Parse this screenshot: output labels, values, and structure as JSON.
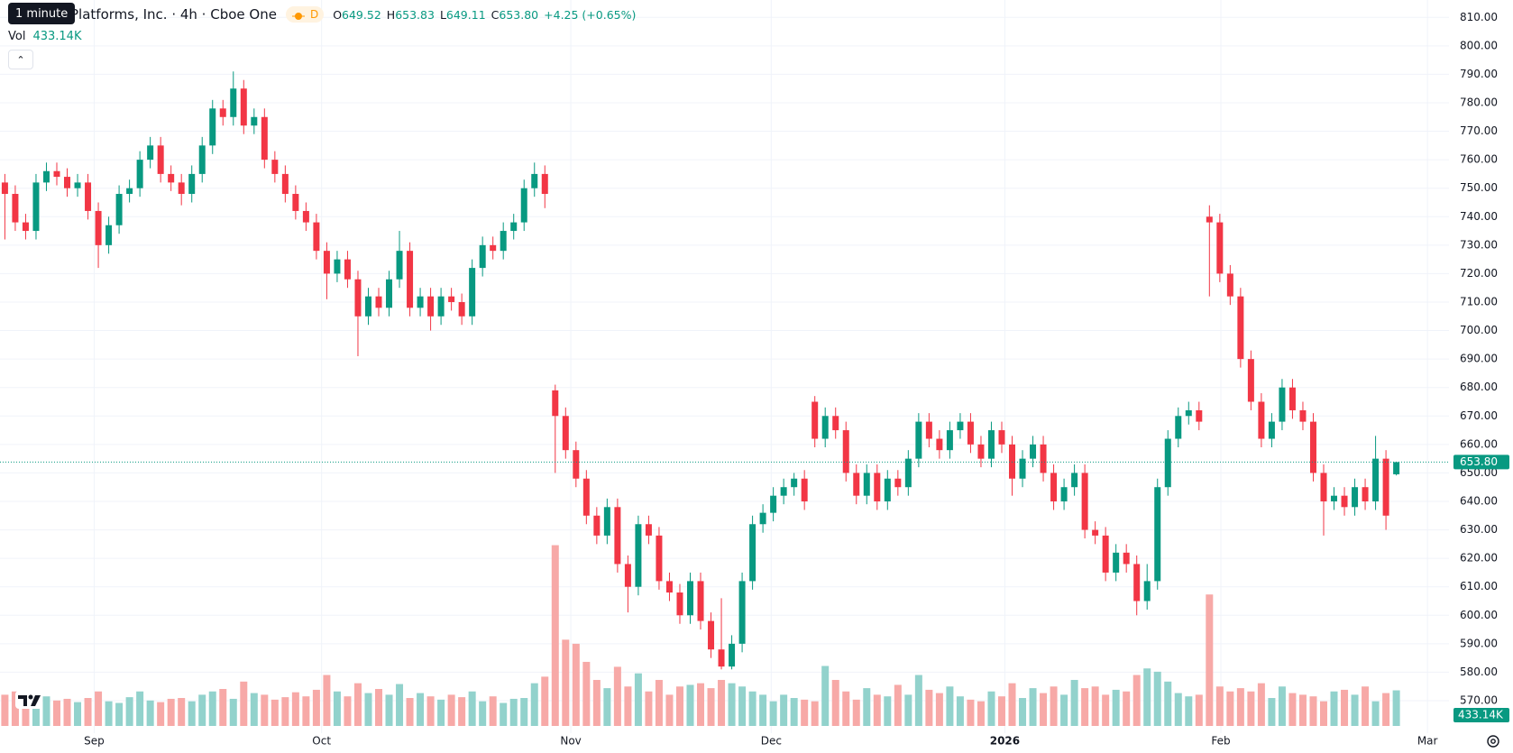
{
  "chart_data": {
    "type": "candlestick",
    "tooltip": "1 minute",
    "title": "Platforms, Inc. · 4h · Cboe One",
    "badge": "D",
    "ohlc_readout": [
      {
        "label": "O",
        "value": "649.52"
      },
      {
        "label": "H",
        "value": "653.83"
      },
      {
        "label": "L",
        "value": "649.11"
      },
      {
        "label": "C",
        "value": "653.80"
      }
    ],
    "change": "+4.25 (+0.65%)",
    "volume_title": "Vol",
    "volume_readout": "433.14K",
    "up_color": "#089981",
    "down_color": "#f23645",
    "volume_up_color": "#92d2cc",
    "volume_down_color": "#f7a9a7",
    "xlim": [
      -0.47,
      139.07
    ],
    "xticks": [
      {
        "value": 8.6,
        "label": "Sep"
      },
      {
        "value": 30.5,
        "label": "Oct"
      },
      {
        "value": 54.5,
        "label": "Nov"
      },
      {
        "value": 73.8,
        "label": "Dec"
      },
      {
        "value": 96.3,
        "label": "2026"
      },
      {
        "value": 117.1,
        "label": "Feb"
      },
      {
        "value": 137.0,
        "label": "Mar"
      }
    ],
    "ylim": [
      558.6,
      816.1
    ],
    "yticks": [
      {
        "value": 570,
        "label": "570.00"
      },
      {
        "value": 580,
        "label": "580.00"
      },
      {
        "value": 590,
        "label": "590.00"
      },
      {
        "value": 600,
        "label": "600.00"
      },
      {
        "value": 610,
        "label": "610.00"
      },
      {
        "value": 620,
        "label": "620.00"
      },
      {
        "value": 630,
        "label": "630.00"
      },
      {
        "value": 640,
        "label": "640.00"
      },
      {
        "value": 650,
        "label": "650.00"
      },
      {
        "value": 660,
        "label": "660.00"
      },
      {
        "value": 670,
        "label": "670.00"
      },
      {
        "value": 680,
        "label": "680.00"
      },
      {
        "value": 690,
        "label": "690.00"
      },
      {
        "value": 700,
        "label": "700.00"
      },
      {
        "value": 710,
        "label": "710.00"
      },
      {
        "value": 720,
        "label": "720.00"
      },
      {
        "value": 730,
        "label": "730.00"
      },
      {
        "value": 740,
        "label": "740.00"
      },
      {
        "value": 750,
        "label": "750.00"
      },
      {
        "value": 760,
        "label": "760.00"
      },
      {
        "value": 770,
        "label": "770.00"
      },
      {
        "value": 780,
        "label": "780.00"
      },
      {
        "value": 790,
        "label": "790.00"
      },
      {
        "value": 800,
        "label": "800.00"
      },
      {
        "value": 810,
        "label": "810.00"
      }
    ],
    "vlim": [
      0,
      2250
    ],
    "grid": true,
    "open": [
      752,
      748,
      738,
      735,
      752,
      756,
      754,
      750,
      752,
      742,
      730,
      737,
      748,
      750,
      760,
      765,
      755,
      752,
      748,
      755,
      765,
      778,
      775,
      785,
      772,
      775,
      760,
      755,
      748,
      742,
      738,
      728,
      720,
      725,
      718,
      705,
      712,
      708,
      718,
      728,
      708,
      712,
      705,
      712,
      710,
      705,
      722,
      730,
      728,
      735,
      738,
      750,
      755,
      679,
      670,
      658,
      648,
      635,
      628,
      638,
      618,
      610,
      632,
      628,
      612,
      608,
      600,
      612,
      598,
      588,
      582,
      590,
      612,
      632,
      636,
      642,
      645,
      648,
      675,
      662,
      670,
      665,
      650,
      642,
      650,
      640,
      648,
      645,
      655,
      668,
      662,
      658,
      665,
      668,
      660,
      655,
      665,
      660,
      648,
      655,
      660,
      650,
      640,
      645,
      650,
      630,
      628,
      615,
      622,
      618,
      605,
      612,
      645,
      662,
      670,
      672,
      740,
      738,
      720,
      712,
      690,
      675,
      662,
      668,
      680,
      672,
      668,
      650,
      640,
      642,
      638,
      645,
      640,
      655,
      649.52
    ],
    "high": [
      755,
      751,
      741,
      755,
      759,
      759,
      757,
      755,
      755,
      745,
      740,
      751,
      753,
      763,
      768,
      768,
      758,
      755,
      758,
      768,
      781,
      781,
      791,
      788,
      778,
      778,
      763,
      758,
      751,
      745,
      741,
      731,
      728,
      728,
      721,
      715,
      715,
      721,
      735,
      731,
      715,
      715,
      715,
      715,
      713,
      725,
      733,
      733,
      738,
      741,
      753,
      759,
      758,
      681,
      673,
      661,
      651,
      638,
      641,
      641,
      621,
      635,
      635,
      631,
      615,
      611,
      615,
      615,
      601,
      606,
      593,
      615,
      635,
      639,
      645,
      648,
      650,
      651,
      677,
      673,
      673,
      668,
      653,
      653,
      653,
      651,
      651,
      658,
      671,
      671,
      665,
      668,
      671,
      671,
      663,
      668,
      668,
      663,
      658,
      663,
      663,
      653,
      648,
      653,
      653,
      633,
      631,
      625,
      625,
      621,
      618,
      648,
      665,
      673,
      675,
      675,
      744,
      741,
      723,
      715,
      693,
      678,
      671,
      683,
      683,
      675,
      671,
      653,
      645,
      645,
      648,
      648,
      663,
      658,
      653.83
    ],
    "low": [
      732,
      735,
      732,
      732,
      749,
      751,
      747,
      747,
      739,
      722,
      727,
      734,
      745,
      747,
      757,
      752,
      749,
      744,
      745,
      752,
      762,
      772,
      772,
      769,
      769,
      757,
      752,
      745,
      739,
      735,
      725,
      711,
      717,
      715,
      691,
      702,
      705,
      705,
      715,
      705,
      705,
      700,
      702,
      707,
      702,
      702,
      719,
      725,
      725,
      732,
      735,
      747,
      743,
      650,
      655,
      645,
      632,
      625,
      625,
      615,
      601,
      607,
      625,
      609,
      605,
      597,
      597,
      595,
      585,
      581,
      581,
      587,
      609,
      629,
      633,
      639,
      642,
      637,
      659,
      659,
      662,
      647,
      639,
      639,
      637,
      637,
      642,
      642,
      652,
      659,
      655,
      655,
      662,
      657,
      652,
      652,
      657,
      642,
      645,
      652,
      647,
      637,
      637,
      642,
      627,
      625,
      612,
      612,
      615,
      600,
      602,
      609,
      642,
      659,
      667,
      665,
      712,
      717,
      709,
      687,
      672,
      659,
      659,
      665,
      669,
      665,
      647,
      628,
      637,
      635,
      635,
      637,
      637,
      630,
      649.11
    ],
    "close": [
      748,
      738,
      735,
      752,
      756,
      754,
      750,
      752,
      742,
      730,
      737,
      748,
      750,
      760,
      765,
      755,
      752,
      748,
      755,
      765,
      778,
      775,
      785,
      772,
      775,
      760,
      755,
      748,
      742,
      738,
      728,
      720,
      725,
      718,
      705,
      712,
      708,
      718,
      728,
      708,
      712,
      705,
      712,
      710,
      705,
      722,
      730,
      728,
      735,
      738,
      750,
      755,
      748,
      670,
      658,
      648,
      635,
      628,
      638,
      618,
      610,
      632,
      628,
      612,
      608,
      600,
      612,
      598,
      588,
      582,
      590,
      612,
      632,
      636,
      642,
      645,
      648,
      640,
      662,
      670,
      665,
      650,
      642,
      650,
      640,
      648,
      645,
      655,
      668,
      662,
      658,
      665,
      668,
      660,
      655,
      665,
      660,
      648,
      655,
      660,
      650,
      640,
      645,
      650,
      630,
      628,
      615,
      622,
      618,
      605,
      612,
      645,
      662,
      670,
      672,
      668,
      738,
      720,
      712,
      690,
      675,
      662,
      668,
      680,
      672,
      668,
      650,
      640,
      642,
      638,
      645,
      640,
      655,
      635,
      653.8
    ],
    "volume": [
      380,
      420,
      350,
      300,
      360,
      310,
      330,
      290,
      340,
      420,
      300,
      280,
      350,
      420,
      310,
      290,
      330,
      340,
      300,
      380,
      420,
      450,
      330,
      540,
      400,
      380,
      320,
      350,
      410,
      360,
      440,
      620,
      420,
      360,
      520,
      400,
      450,
      380,
      510,
      340,
      400,
      360,
      320,
      380,
      350,
      420,
      300,
      360,
      280,
      330,
      340,
      520,
      600,
      2200,
      1050,
      1000,
      780,
      560,
      460,
      720,
      480,
      640,
      420,
      560,
      380,
      480,
      500,
      520,
      460,
      560,
      520,
      480,
      420,
      380,
      300,
      380,
      340,
      320,
      300,
      730,
      560,
      420,
      320,
      460,
      380,
      360,
      500,
      380,
      620,
      440,
      400,
      480,
      360,
      320,
      300,
      420,
      360,
      520,
      340,
      460,
      400,
      480,
      380,
      560,
      460,
      480,
      380,
      440,
      420,
      620,
      700,
      660,
      540,
      400,
      360,
      380,
      1600,
      480,
      420,
      460,
      420,
      520,
      340,
      480,
      400,
      380,
      360,
      300,
      420,
      440,
      380,
      480,
      300,
      400,
      433.14
    ],
    "last_price": {
      "value": 653.8,
      "label": "653.80"
    },
    "last_volume": {
      "value": 433.14,
      "label": "433.14K"
    }
  }
}
